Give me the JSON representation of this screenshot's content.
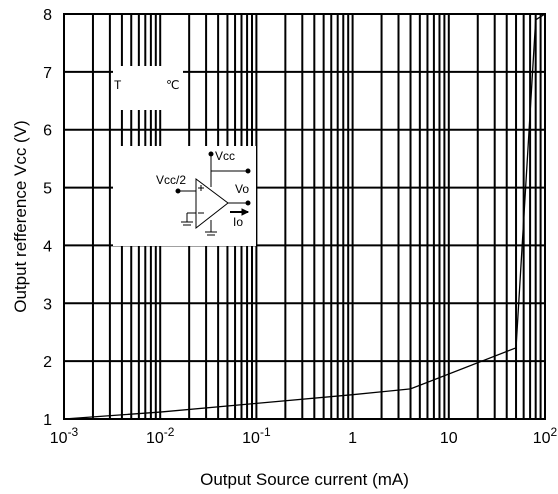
{
  "chart_data": {
    "type": "line",
    "title": "",
    "xlabel": "Output Source current  (mA)",
    "ylabel": "Output refference Vcc  (V)",
    "xscale": "log",
    "xlim": [
      0.001,
      100
    ],
    "ylim": [
      1,
      8
    ],
    "grid": true,
    "xticks": [
      {
        "value": 0.001,
        "base": "10",
        "exp": "-3"
      },
      {
        "value": 0.01,
        "base": "10",
        "exp": "-2"
      },
      {
        "value": 0.1,
        "base": "10",
        "exp": "-1"
      },
      {
        "value": 1,
        "base": "1",
        "exp": ""
      },
      {
        "value": 10,
        "base": "10",
        "exp": ""
      },
      {
        "value": 100,
        "base": "10",
        "exp": "2"
      }
    ],
    "yticks": [
      {
        "value": 1,
        "label": "1"
      },
      {
        "value": 2,
        "label": "2"
      },
      {
        "value": 3,
        "label": "3"
      },
      {
        "value": 4,
        "label": "4"
      },
      {
        "value": 5,
        "label": "5"
      },
      {
        "value": 6,
        "label": "6"
      },
      {
        "value": 7,
        "label": "7"
      },
      {
        "value": 8,
        "label": "8"
      }
    ],
    "series": [
      {
        "x": [
          0.001,
          0.01,
          0.1,
          1,
          4,
          50,
          80,
          100
        ],
        "y": [
          1.0,
          1.12,
          1.27,
          1.42,
          1.52,
          2.23,
          7.9,
          8.0
        ]
      }
    ],
    "annotations": {
      "temp_symbol": "T",
      "temp_unit": "℃",
      "circuit": {
        "vcc_label": "Vcc",
        "vin_label": "Vcc/2",
        "vout_label": "Vo",
        "io_label": "Io"
      }
    }
  }
}
